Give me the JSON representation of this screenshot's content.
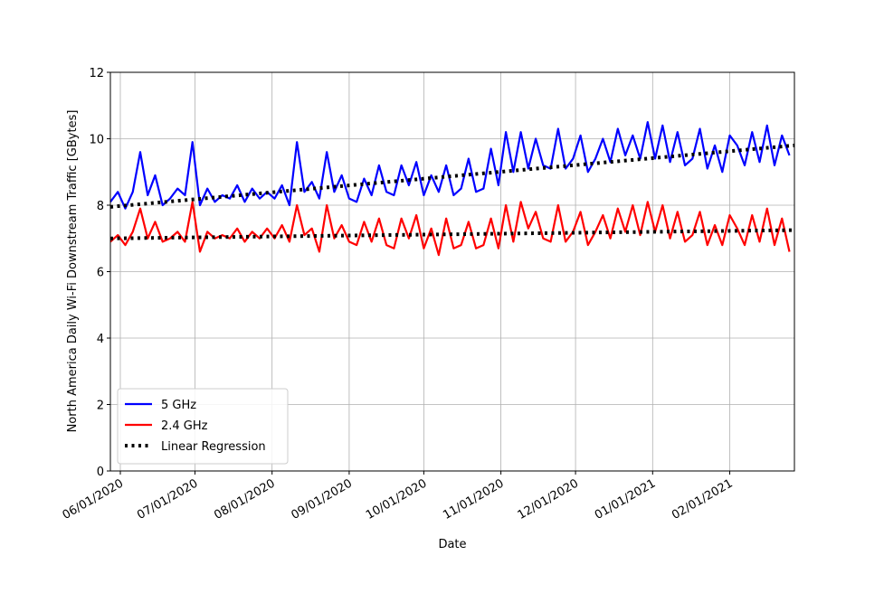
{
  "chart_data": {
    "type": "line",
    "xlabel": "Date",
    "ylabel": "North America Daily Wi-Fi Downstream Traffic [GBytes]",
    "x": [
      "2020-05-28",
      "2020-05-31",
      "2020-06-03",
      "2020-06-06",
      "2020-06-09",
      "2020-06-12",
      "2020-06-15",
      "2020-06-18",
      "2020-06-21",
      "2020-06-24",
      "2020-06-27",
      "2020-06-30",
      "2020-07-03",
      "2020-07-06",
      "2020-07-09",
      "2020-07-12",
      "2020-07-15",
      "2020-07-18",
      "2020-07-21",
      "2020-07-24",
      "2020-07-27",
      "2020-07-30",
      "2020-08-02",
      "2020-08-05",
      "2020-08-08",
      "2020-08-11",
      "2020-08-14",
      "2020-08-17",
      "2020-08-20",
      "2020-08-23",
      "2020-08-26",
      "2020-08-29",
      "2020-09-01",
      "2020-09-04",
      "2020-09-07",
      "2020-09-10",
      "2020-09-13",
      "2020-09-16",
      "2020-09-19",
      "2020-09-22",
      "2020-09-25",
      "2020-09-28",
      "2020-10-01",
      "2020-10-04",
      "2020-10-07",
      "2020-10-10",
      "2020-10-13",
      "2020-10-16",
      "2020-10-19",
      "2020-10-22",
      "2020-10-25",
      "2020-10-28",
      "2020-10-31",
      "2020-11-03",
      "2020-11-06",
      "2020-11-09",
      "2020-11-12",
      "2020-11-15",
      "2020-11-18",
      "2020-11-21",
      "2020-11-24",
      "2020-11-27",
      "2020-11-30",
      "2020-12-03",
      "2020-12-06",
      "2020-12-09",
      "2020-12-12",
      "2020-12-15",
      "2020-12-18",
      "2020-12-21",
      "2020-12-24",
      "2020-12-27",
      "2020-12-30",
      "2021-01-02",
      "2021-01-05",
      "2021-01-08",
      "2021-01-11",
      "2021-01-14",
      "2021-01-17",
      "2021-01-20",
      "2021-01-23",
      "2021-01-26",
      "2021-01-29",
      "2021-02-01",
      "2021-02-04",
      "2021-02-07",
      "2021-02-10",
      "2021-02-13",
      "2021-02-16",
      "2021-02-19",
      "2021-02-22",
      "2021-02-25"
    ],
    "series": [
      {
        "name": "5 GHz",
        "color": "#0000ff",
        "style": "solid",
        "values": [
          8.1,
          8.4,
          7.9,
          8.4,
          9.6,
          8.3,
          8.9,
          8.0,
          8.2,
          8.5,
          8.3,
          9.9,
          8.0,
          8.5,
          8.1,
          8.3,
          8.2,
          8.6,
          8.1,
          8.5,
          8.2,
          8.4,
          8.2,
          8.6,
          8.0,
          9.9,
          8.4,
          8.7,
          8.2,
          9.6,
          8.4,
          8.9,
          8.2,
          8.1,
          8.8,
          8.3,
          9.2,
          8.4,
          8.3,
          9.2,
          8.6,
          9.3,
          8.3,
          8.9,
          8.4,
          9.2,
          8.3,
          8.5,
          9.4,
          8.4,
          8.5,
          9.7,
          8.6,
          10.2,
          9.0,
          10.2,
          9.1,
          10.0,
          9.2,
          9.1,
          10.3,
          9.1,
          9.4,
          10.1,
          9.0,
          9.4,
          10.0,
          9.3,
          10.3,
          9.5,
          10.1,
          9.4,
          10.5,
          9.4,
          10.4,
          9.3,
          10.2,
          9.2,
          9.4,
          10.3,
          9.1,
          9.8,
          9.0,
          10.1,
          9.8,
          9.2,
          10.2,
          9.3,
          10.4,
          9.2,
          10.1,
          9.5
        ]
      },
      {
        "name": "2.4 GHz",
        "color": "#ff0000",
        "style": "solid",
        "values": [
          6.9,
          7.1,
          6.8,
          7.2,
          7.9,
          7.0,
          7.5,
          6.9,
          7.0,
          7.2,
          6.9,
          8.1,
          6.6,
          7.2,
          7.0,
          7.1,
          7.0,
          7.3,
          6.9,
          7.2,
          7.0,
          7.3,
          7.0,
          7.4,
          6.9,
          8.0,
          7.1,
          7.3,
          6.6,
          8.0,
          7.0,
          7.4,
          6.9,
          6.8,
          7.5,
          6.9,
          7.6,
          6.8,
          6.7,
          7.6,
          7.0,
          7.7,
          6.7,
          7.3,
          6.5,
          7.6,
          6.7,
          6.8,
          7.5,
          6.7,
          6.8,
          7.6,
          6.7,
          8.0,
          6.9,
          8.1,
          7.3,
          7.8,
          7.0,
          6.9,
          8.0,
          6.9,
          7.2,
          7.8,
          6.8,
          7.2,
          7.7,
          7.0,
          7.9,
          7.2,
          8.0,
          7.1,
          8.1,
          7.2,
          8.0,
          7.0,
          7.8,
          6.9,
          7.1,
          7.8,
          6.8,
          7.4,
          6.8,
          7.7,
          7.3,
          6.8,
          7.7,
          6.9,
          7.9,
          6.8,
          7.6,
          6.6
        ]
      },
      {
        "name": "Linear Regression",
        "color": "#000000",
        "style": "dotted",
        "x": [
          "2020-05-28",
          "2021-02-27"
        ],
        "values": [
          7.95,
          9.8
        ]
      },
      {
        "color": "#000000",
        "style": "dotted",
        "x": [
          "2020-05-28",
          "2021-02-27"
        ],
        "values": [
          7.0,
          7.25
        ]
      }
    ],
    "xlim": [
      "2020-05-28",
      "2021-02-27"
    ],
    "xticks": [
      {
        "value": "2020-06-01",
        "label": "06/01/2020"
      },
      {
        "value": "2020-07-01",
        "label": "07/01/2020"
      },
      {
        "value": "2020-08-01",
        "label": "08/01/2020"
      },
      {
        "value": "2020-09-01",
        "label": "09/01/2020"
      },
      {
        "value": "2020-10-01",
        "label": "10/01/2020"
      },
      {
        "value": "2020-11-01",
        "label": "11/01/2020"
      },
      {
        "value": "2020-12-01",
        "label": "12/01/2020"
      },
      {
        "value": "2021-01-01",
        "label": "01/01/2021"
      },
      {
        "value": "2021-02-01",
        "label": "02/01/2021"
      }
    ],
    "ylim": [
      0,
      12
    ],
    "yticks": [
      0,
      2,
      4,
      6,
      8,
      10,
      12
    ],
    "grid": true,
    "legend": "lower left"
  }
}
